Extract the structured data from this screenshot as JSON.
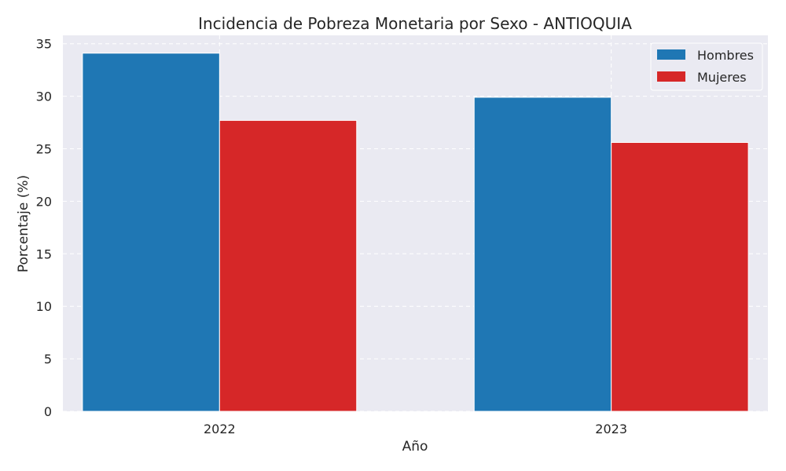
{
  "chart_data": {
    "type": "bar",
    "title": "Incidencia de Pobreza Monetaria por Sexo - ANTIOQUIA",
    "xlabel": "Año",
    "ylabel": "Porcentaje (%)",
    "categories": [
      "2022",
      "2023"
    ],
    "series": [
      {
        "name": "Hombres",
        "color": "#1f77b4",
        "values": [
          34.1,
          29.9
        ]
      },
      {
        "name": "Mujeres",
        "color": "#d62728",
        "values": [
          27.7,
          25.6
        ]
      }
    ],
    "ylim": [
      0,
      35.8
    ],
    "yticks": [
      0,
      5,
      10,
      15,
      20,
      25,
      30,
      35
    ],
    "grid": true,
    "legend_position": "top-right",
    "background_color": "#eaeaf2"
  }
}
